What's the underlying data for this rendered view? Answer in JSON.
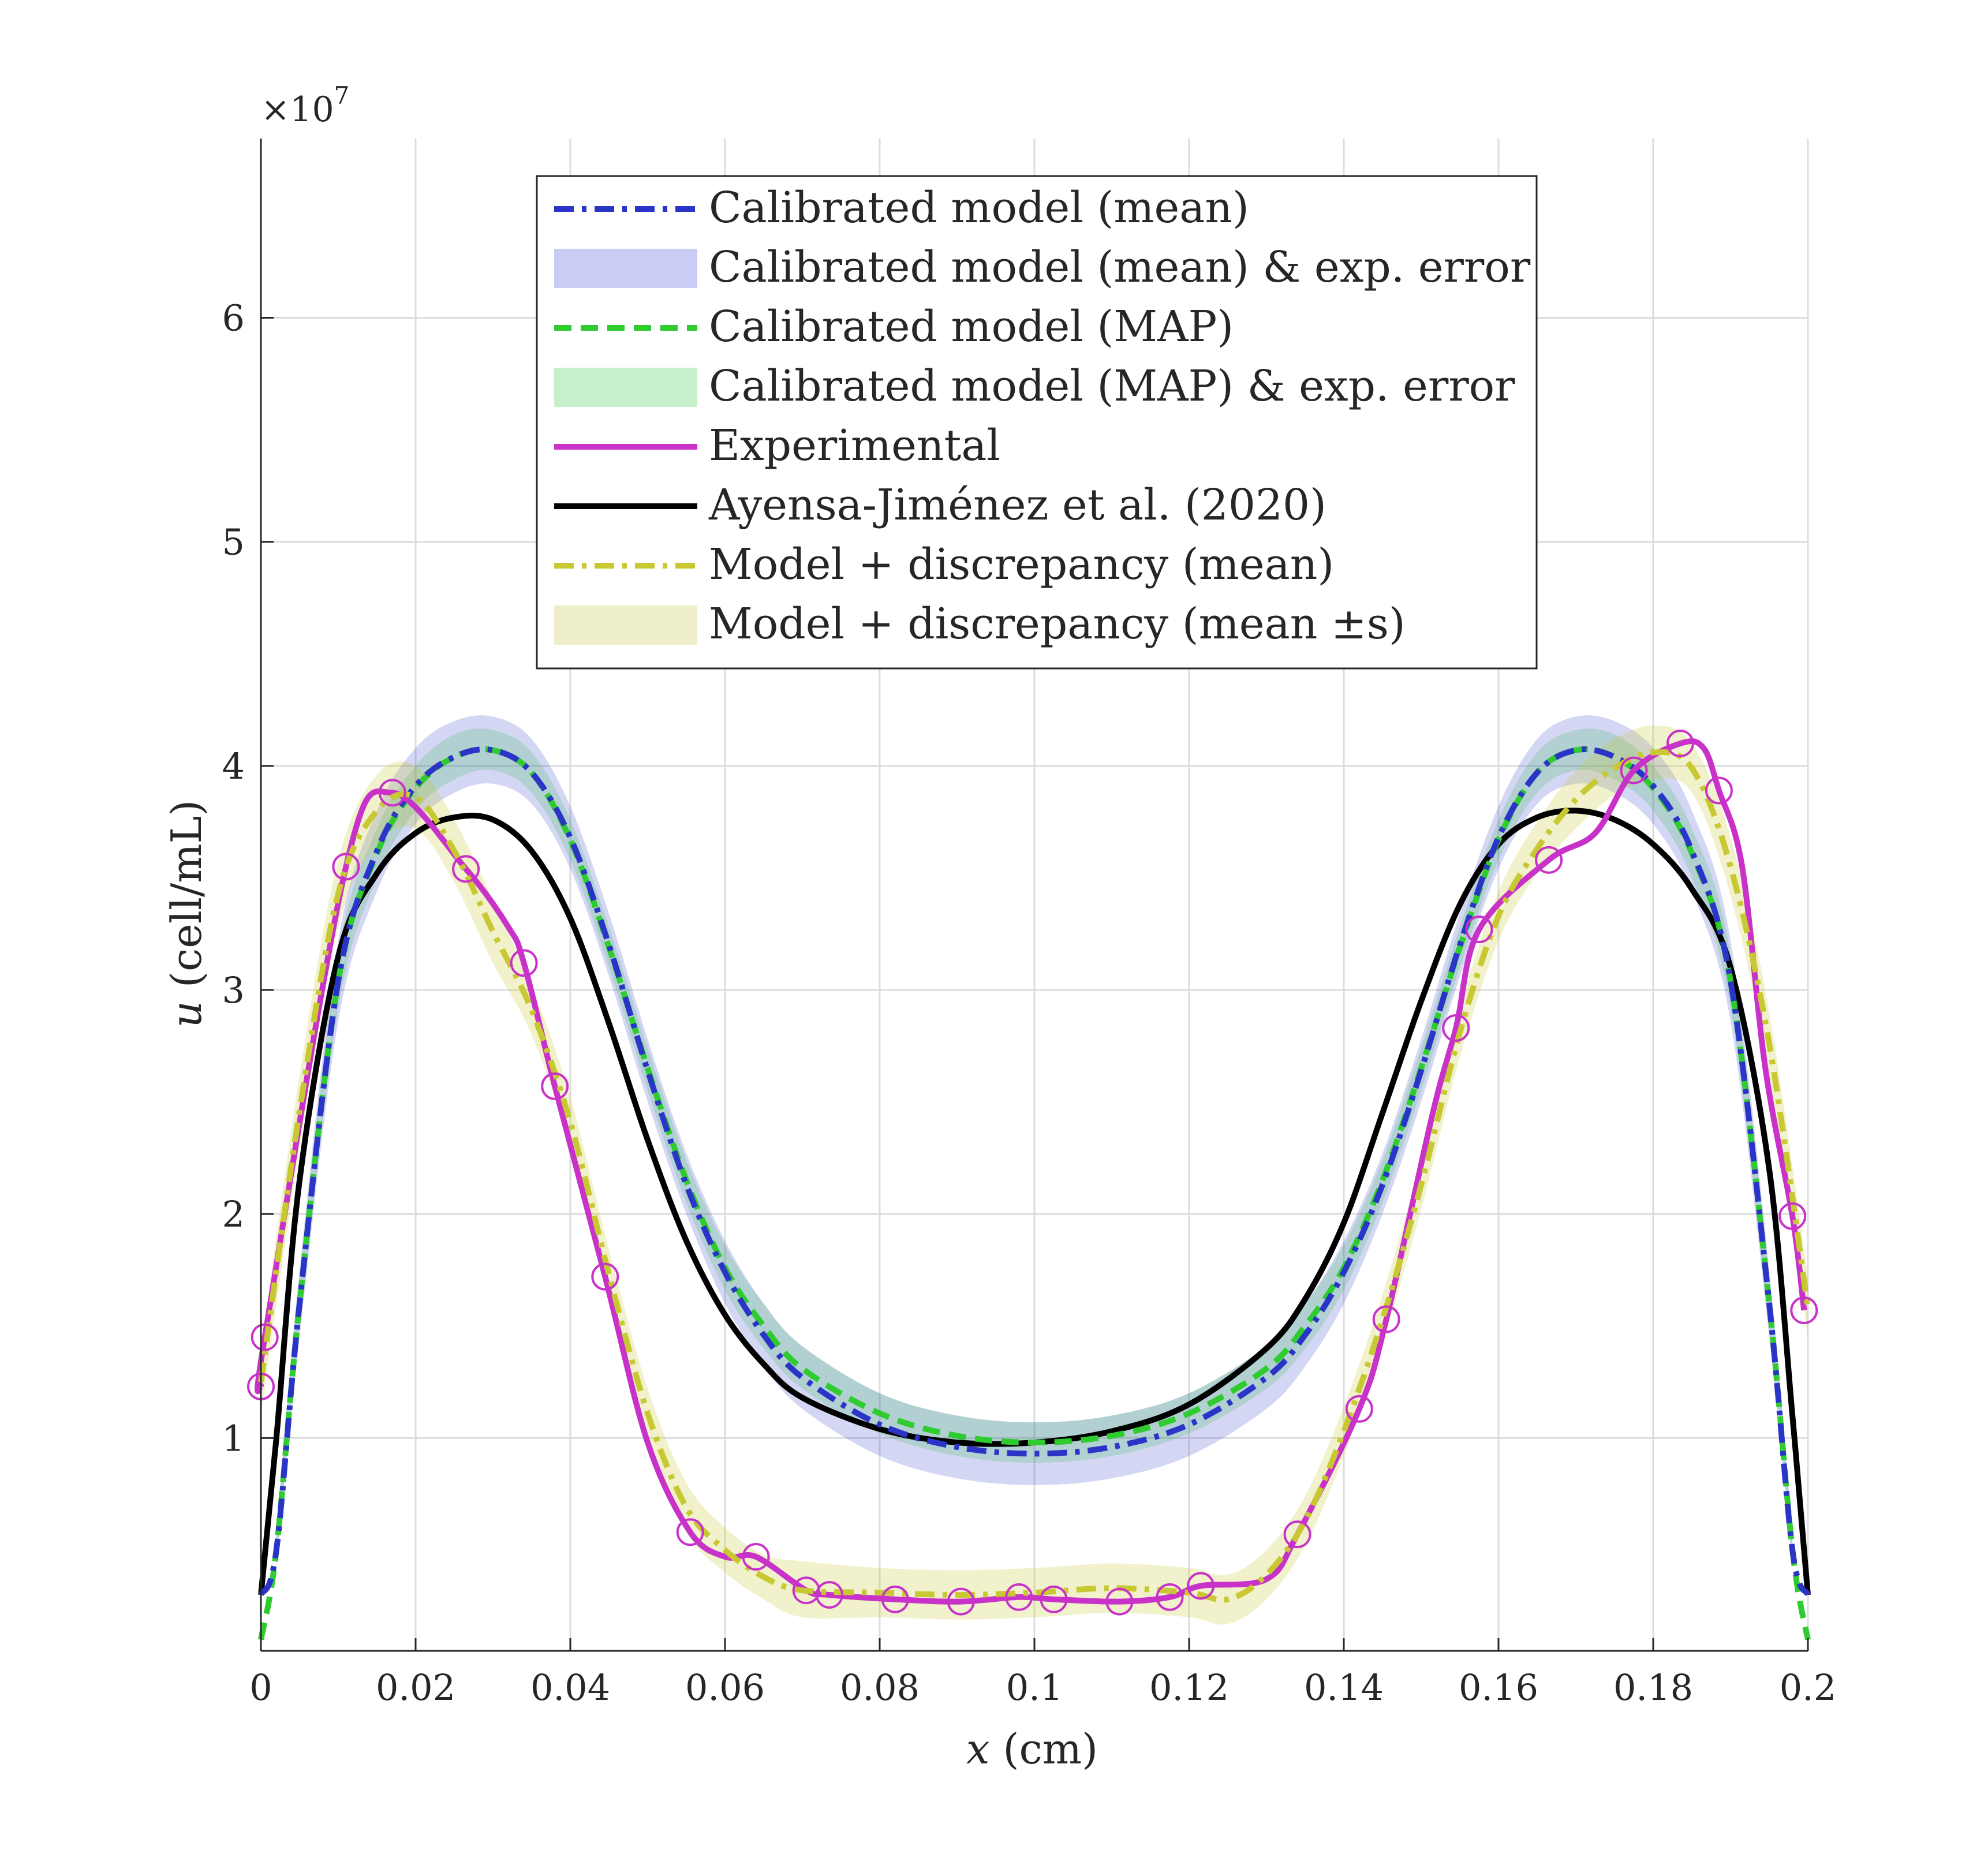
{
  "chart_data": {
    "type": "line",
    "xlabel": {
      "var": "x",
      "unit": " (cm)"
    },
    "ylabel": {
      "var": "u",
      "unit": " (cell/mL)"
    },
    "y_exponent_label": "×10",
    "y_exponent_power": "7",
    "xlim": [
      0,
      0.2
    ],
    "ylim": [
      0.05,
      6.8
    ],
    "y_units_scale": "1e7",
    "xticks": [
      0,
      0.02,
      0.04,
      0.06,
      0.08,
      0.1,
      0.12,
      0.14,
      0.16,
      0.18,
      0.2
    ],
    "xtick_labels": [
      "0",
      "0.02",
      "0.04",
      "0.06",
      "0.08",
      "0.1",
      "0.12",
      "0.14",
      "0.16",
      "0.18",
      "0.2"
    ],
    "yticks": [
      1,
      2,
      3,
      4,
      5,
      6
    ],
    "ytick_labels": [
      "1",
      "2",
      "3",
      "4",
      "5",
      "6"
    ],
    "grid": true,
    "legend_position": "top-center",
    "legend": [
      {
        "label": "Calibrated model (mean)",
        "style": "dashdot",
        "color": "#2a35c8"
      },
      {
        "label": "Calibrated model (mean) & exp. error",
        "style": "band",
        "color": "#c9cdf3"
      },
      {
        "label": "Calibrated model (MAP)",
        "style": "dashed",
        "color": "#2ecc2e"
      },
      {
        "label": "Calibrated model (MAP) & exp. error",
        "style": "band",
        "color": "#c8efcc"
      },
      {
        "label": "Experimental",
        "style": "solid",
        "color": "#c832c8"
      },
      {
        "label": "Ayensa-Jiménez et al. (2020)",
        "style": "solid",
        "color": "#000000"
      },
      {
        "label": "Model + discrepancy (mean)",
        "style": "dashdot",
        "color": "#c8c832"
      },
      {
        "label": "Model + discrepancy (mean ±s)",
        "style": "band",
        "color": "#eeeec8"
      }
    ],
    "series": [
      {
        "name": "Calibrated model (MAP) & exp. error",
        "type": "band",
        "color": "#2ecc2e",
        "opacity": 0.2,
        "x": [
          0.002,
          0.005,
          0.01,
          0.015,
          0.02,
          0.025,
          0.03,
          0.035,
          0.04,
          0.045,
          0.05,
          0.055,
          0.06,
          0.065,
          0.07,
          0.08,
          0.09,
          0.1,
          0.11,
          0.12,
          0.13,
          0.135,
          0.14,
          0.145,
          0.15,
          0.155,
          0.16,
          0.165,
          0.17,
          0.175,
          0.18,
          0.185,
          0.19,
          0.195,
          0.198
        ],
        "lower": [
          0.45,
          1.5,
          2.92,
          3.5,
          3.8,
          3.94,
          3.98,
          3.88,
          3.58,
          3.1,
          2.55,
          2.05,
          1.66,
          1.4,
          1.22,
          1.02,
          0.92,
          0.89,
          0.92,
          1.02,
          1.22,
          1.4,
          1.66,
          2.05,
          2.55,
          3.1,
          3.58,
          3.88,
          3.98,
          3.94,
          3.8,
          3.5,
          2.92,
          1.5,
          0.45
        ],
        "upper": [
          0.55,
          1.7,
          3.16,
          3.72,
          4.0,
          4.14,
          4.16,
          4.06,
          3.76,
          3.28,
          2.74,
          2.24,
          1.86,
          1.6,
          1.41,
          1.2,
          1.1,
          1.07,
          1.1,
          1.2,
          1.41,
          1.6,
          1.86,
          2.24,
          2.74,
          3.28,
          3.76,
          4.06,
          4.16,
          4.14,
          4.0,
          3.72,
          3.16,
          1.7,
          0.55
        ]
      },
      {
        "name": "Calibrated model (mean) & exp. error",
        "type": "band",
        "color": "#2a35c8",
        "opacity": 0.2,
        "x": [
          0.002,
          0.005,
          0.01,
          0.015,
          0.02,
          0.025,
          0.03,
          0.035,
          0.04,
          0.045,
          0.05,
          0.055,
          0.06,
          0.065,
          0.07,
          0.08,
          0.09,
          0.1,
          0.11,
          0.12,
          0.13,
          0.135,
          0.14,
          0.145,
          0.15,
          0.155,
          0.16,
          0.165,
          0.17,
          0.175,
          0.18,
          0.185,
          0.19,
          0.195,
          0.198
        ],
        "lower": [
          0.42,
          1.45,
          2.86,
          3.44,
          3.74,
          3.88,
          3.92,
          3.83,
          3.54,
          3.06,
          2.5,
          2.0,
          1.6,
          1.32,
          1.13,
          0.92,
          0.82,
          0.79,
          0.82,
          0.92,
          1.13,
          1.32,
          1.6,
          2.0,
          2.5,
          3.06,
          3.54,
          3.83,
          3.92,
          3.88,
          3.74,
          3.44,
          2.86,
          1.45,
          0.42
        ],
        "upper": [
          0.58,
          1.75,
          3.22,
          3.8,
          4.08,
          4.2,
          4.22,
          4.12,
          3.82,
          3.34,
          2.78,
          2.27,
          1.88,
          1.6,
          1.41,
          1.2,
          1.1,
          1.07,
          1.1,
          1.2,
          1.41,
          1.6,
          1.88,
          2.27,
          2.78,
          3.34,
          3.82,
          4.12,
          4.22,
          4.2,
          4.08,
          3.8,
          3.22,
          1.75,
          0.58
        ]
      },
      {
        "name": "Model + discrepancy (mean ±s)",
        "type": "band",
        "color": "#c8c832",
        "opacity": 0.25,
        "x": [
          0.0,
          0.005,
          0.01,
          0.015,
          0.02,
          0.025,
          0.03,
          0.035,
          0.04,
          0.045,
          0.05,
          0.055,
          0.06,
          0.065,
          0.07,
          0.08,
          0.09,
          0.1,
          0.11,
          0.12,
          0.125,
          0.13,
          0.135,
          0.14,
          0.145,
          0.15,
          0.155,
          0.16,
          0.165,
          0.17,
          0.175,
          0.18,
          0.185,
          0.19,
          0.195,
          0.2
        ],
        "lower": [
          1.1,
          2.3,
          3.28,
          3.65,
          3.72,
          3.48,
          3.12,
          2.8,
          2.3,
          1.62,
          1.0,
          0.58,
          0.4,
          0.28,
          0.2,
          0.2,
          0.19,
          0.2,
          0.22,
          0.2,
          0.17,
          0.28,
          0.52,
          0.92,
          1.42,
          2.02,
          2.7,
          3.22,
          3.52,
          3.72,
          3.87,
          3.94,
          3.88,
          3.42,
          2.62,
          1.45
        ],
        "upper": [
          1.4,
          2.62,
          3.58,
          3.96,
          4.0,
          3.76,
          3.4,
          3.02,
          2.52,
          1.84,
          1.22,
          0.8,
          0.6,
          0.48,
          0.45,
          0.42,
          0.41,
          0.42,
          0.44,
          0.42,
          0.39,
          0.5,
          0.74,
          1.14,
          1.64,
          2.24,
          2.92,
          3.44,
          3.75,
          3.98,
          4.12,
          4.18,
          4.1,
          3.68,
          2.9,
          1.72
        ]
      },
      {
        "name": "Ayensa-Jiménez et al. (2020)",
        "type": "line",
        "color": "#000000",
        "dash": "solid",
        "x": [
          0.0,
          0.002,
          0.005,
          0.01,
          0.015,
          0.02,
          0.025,
          0.03,
          0.035,
          0.04,
          0.045,
          0.05,
          0.055,
          0.06,
          0.065,
          0.07,
          0.08,
          0.09,
          0.1,
          0.11,
          0.12,
          0.13,
          0.135,
          0.14,
          0.145,
          0.15,
          0.155,
          0.16,
          0.165,
          0.17,
          0.175,
          0.18,
          0.185,
          0.19,
          0.195,
          0.198,
          0.2
        ],
        "y": [
          0.3,
          1.0,
          2.15,
          3.15,
          3.52,
          3.7,
          3.77,
          3.76,
          3.62,
          3.32,
          2.85,
          2.33,
          1.88,
          1.55,
          1.33,
          1.18,
          1.04,
          0.98,
          0.98,
          1.03,
          1.15,
          1.4,
          1.62,
          1.96,
          2.45,
          2.95,
          3.38,
          3.65,
          3.77,
          3.8,
          3.76,
          3.65,
          3.45,
          3.1,
          2.2,
          1.1,
          0.3
        ]
      },
      {
        "name": "Calibrated model (MAP)",
        "type": "line",
        "color": "#2ecc2e",
        "dash": "dashed",
        "x": [
          0.0,
          0.002,
          0.005,
          0.01,
          0.015,
          0.02,
          0.025,
          0.03,
          0.035,
          0.04,
          0.045,
          0.05,
          0.055,
          0.06,
          0.065,
          0.07,
          0.08,
          0.09,
          0.1,
          0.11,
          0.12,
          0.13,
          0.135,
          0.14,
          0.145,
          0.15,
          0.155,
          0.16,
          0.165,
          0.17,
          0.175,
          0.18,
          0.185,
          0.19,
          0.195,
          0.198,
          0.2
        ],
        "y": [
          0.1,
          0.5,
          1.6,
          3.04,
          3.61,
          3.9,
          4.04,
          4.07,
          3.97,
          3.67,
          3.19,
          2.65,
          2.15,
          1.76,
          1.5,
          1.31,
          1.11,
          1.01,
          0.98,
          1.01,
          1.11,
          1.31,
          1.5,
          1.76,
          2.15,
          2.65,
          3.19,
          3.67,
          3.97,
          4.07,
          4.04,
          3.9,
          3.61,
          3.04,
          1.6,
          0.5,
          0.1
        ]
      },
      {
        "name": "Calibrated model (mean)",
        "type": "line",
        "color": "#2a35c8",
        "dash": "dashdot",
        "x": [
          0.0,
          0.002,
          0.005,
          0.01,
          0.015,
          0.02,
          0.025,
          0.03,
          0.035,
          0.04,
          0.045,
          0.05,
          0.055,
          0.06,
          0.065,
          0.07,
          0.08,
          0.09,
          0.1,
          0.11,
          0.12,
          0.13,
          0.135,
          0.14,
          0.145,
          0.15,
          0.155,
          0.16,
          0.165,
          0.17,
          0.175,
          0.18,
          0.185,
          0.19,
          0.195,
          0.198,
          0.2
        ],
        "y": [
          0.3,
          0.5,
          1.6,
          3.04,
          3.62,
          3.91,
          4.04,
          4.07,
          3.97,
          3.68,
          3.2,
          2.64,
          2.13,
          1.74,
          1.46,
          1.27,
          1.06,
          0.96,
          0.93,
          0.96,
          1.06,
          1.27,
          1.46,
          1.74,
          2.13,
          2.64,
          3.2,
          3.68,
          3.97,
          4.07,
          4.04,
          3.91,
          3.62,
          3.04,
          1.6,
          0.5,
          0.3
        ]
      },
      {
        "name": "Experimental",
        "type": "line",
        "color": "#c832c8",
        "dash": "solid",
        "marker": "circle",
        "marker_every": 1,
        "x": [
          0.0,
          0.0005,
          0.011,
          0.017,
          0.0265,
          0.032,
          0.034,
          0.038,
          0.0445,
          0.05,
          0.0555,
          0.06,
          0.064,
          0.0705,
          0.0735,
          0.082,
          0.0905,
          0.098,
          0.1025,
          0.111,
          0.1175,
          0.1215,
          0.13,
          0.134,
          0.142,
          0.1455,
          0.1515,
          0.1545,
          0.1575,
          0.1665,
          0.1725,
          0.1775,
          0.1835,
          0.1865,
          0.1885,
          0.1915,
          0.1945,
          0.198,
          0.1995
        ],
        "y": [
          1.23,
          1.45,
          3.55,
          3.88,
          3.54,
          3.28,
          3.12,
          2.57,
          1.72,
          0.98,
          0.58,
          0.47,
          0.47,
          0.32,
          0.3,
          0.28,
          0.27,
          0.29,
          0.28,
          0.27,
          0.29,
          0.34,
          0.37,
          0.57,
          1.13,
          1.53,
          2.45,
          2.83,
          3.27,
          3.58,
          3.7,
          3.98,
          4.1,
          4.08,
          3.89,
          3.55,
          2.65,
          1.99,
          1.57
        ],
        "marker_x": [
          0.0,
          0.0005,
          0.011,
          0.017,
          0.0265,
          0.034,
          0.038,
          0.0445,
          0.0555,
          0.064,
          0.0705,
          0.0735,
          0.082,
          0.0905,
          0.098,
          0.1025,
          0.111,
          0.1175,
          0.1215,
          0.134,
          0.142,
          0.1455,
          0.1545,
          0.1575,
          0.1665,
          0.1775,
          0.1835,
          0.1885,
          0.198,
          0.1995
        ],
        "marker_y": [
          1.23,
          1.45,
          3.55,
          3.88,
          3.54,
          3.12,
          2.57,
          1.72,
          0.58,
          0.47,
          0.32,
          0.3,
          0.28,
          0.27,
          0.29,
          0.28,
          0.27,
          0.29,
          0.34,
          0.57,
          1.13,
          1.53,
          2.83,
          3.27,
          3.58,
          3.98,
          4.1,
          3.89,
          1.99,
          1.57
        ]
      },
      {
        "name": "Model + discrepancy (mean)",
        "type": "line",
        "color": "#c8c832",
        "dash": "dashdot",
        "x": [
          0.0,
          0.005,
          0.01,
          0.015,
          0.02,
          0.025,
          0.03,
          0.035,
          0.04,
          0.045,
          0.05,
          0.055,
          0.06,
          0.065,
          0.07,
          0.08,
          0.09,
          0.1,
          0.11,
          0.12,
          0.125,
          0.13,
          0.135,
          0.14,
          0.145,
          0.15,
          0.155,
          0.16,
          0.165,
          0.17,
          0.175,
          0.18,
          0.185,
          0.19,
          0.195,
          0.2
        ],
        "y": [
          1.25,
          2.46,
          3.43,
          3.8,
          3.86,
          3.62,
          3.26,
          2.91,
          2.41,
          1.73,
          1.11,
          0.69,
          0.5,
          0.38,
          0.32,
          0.31,
          0.3,
          0.31,
          0.33,
          0.31,
          0.28,
          0.39,
          0.63,
          1.03,
          1.53,
          2.13,
          2.81,
          3.33,
          3.63,
          3.85,
          3.99,
          4.06,
          3.99,
          3.55,
          2.76,
          1.58
        ]
      }
    ]
  }
}
